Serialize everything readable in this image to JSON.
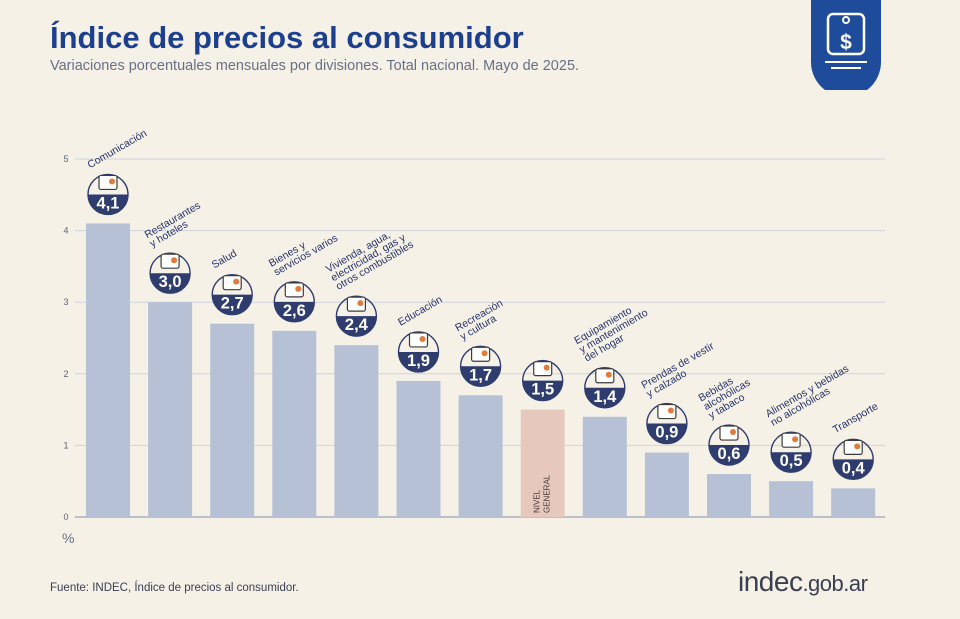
{
  "header": {
    "title": "Índice de precios al consumidor",
    "subtitle": "Variaciones porcentuales mensuales por divisiones. Total nacional. Mayo de 2025."
  },
  "footer": {
    "source": "Fuente: INDEC, Índice de precios al consumidor.",
    "brand_main": "indec",
    "brand_tld": ".gob.ar"
  },
  "colors": {
    "background": "#f6f1e6",
    "bar": "#b6c1d6",
    "bar_highlight": "#e6c8bd",
    "badge": "#2f3c6e",
    "title": "#1d3f8f",
    "icon_accent": "#e07b3c"
  },
  "chart_data": {
    "type": "bar",
    "title": "Índice de precios al consumidor",
    "subtitle": "Variaciones porcentuales mensuales por divisiones. Total nacional. Mayo de 2025.",
    "ylabel": "%",
    "ylim": [
      0,
      5
    ],
    "yticks": [
      "0",
      "1",
      "2",
      "3",
      "4",
      "5"
    ],
    "grid": true,
    "categories": [
      "Comunicación",
      "Restaurantes y hoteles",
      "Salud",
      "Bienes y servicios varios",
      "Vivienda, agua, electricidad, gas y otros combustibles",
      "Educación",
      "Recreación y cultura",
      "Nivel general",
      "Equipamiento y mantenimiento del hogar",
      "Prendas de vestir y calzado",
      "Bebidas alcohólicas y tabaco",
      "Alimentos y bebidas no alcohólicas",
      "Transporte"
    ],
    "category_lines": [
      [
        "Comunicación"
      ],
      [
        "Restaurantes",
        "y hoteles"
      ],
      [
        "Salud"
      ],
      [
        "Bienes y",
        "servicios varios"
      ],
      [
        "Vivienda, agua,",
        "electricidad, gas y",
        "otros combustibles"
      ],
      [
        "Educación"
      ],
      [
        "Recreación",
        "y cultura"
      ],
      [
        "NIVEL",
        "GENERAL"
      ],
      [
        "Equipamiento",
        "y mantenimiento",
        "del hogar"
      ],
      [
        "Prendas de vestir",
        "y calzado"
      ],
      [
        "Bebidas",
        "alcohólicas",
        "y tabaco"
      ],
      [
        "Alimentos y bebidas",
        "no alcohólicas"
      ],
      [
        "Transporte"
      ]
    ],
    "values": [
      4.1,
      3.0,
      2.7,
      2.6,
      2.4,
      1.9,
      1.7,
      1.5,
      1.4,
      0.9,
      0.6,
      0.5,
      0.4
    ],
    "value_labels": [
      "4,1",
      "3,0",
      "2,7",
      "2,6",
      "2,4",
      "1,9",
      "1,7",
      "1,5",
      "1,4",
      "0,9",
      "0,6",
      "0,5",
      "0,4"
    ],
    "highlight_index": 7,
    "icons": [
      "smartphone-icon",
      "cutlery-icon",
      "first-aid-icon",
      "comb-scissors-icon",
      "lightbulb-icon",
      "notebook-pencil-icon",
      "umbrella-ball-icon",
      "shopping-bag-icon",
      "iron-icon",
      "tshirt-icon",
      "bottle-glass-icon",
      "food-icon",
      "bus-card-icon"
    ]
  }
}
